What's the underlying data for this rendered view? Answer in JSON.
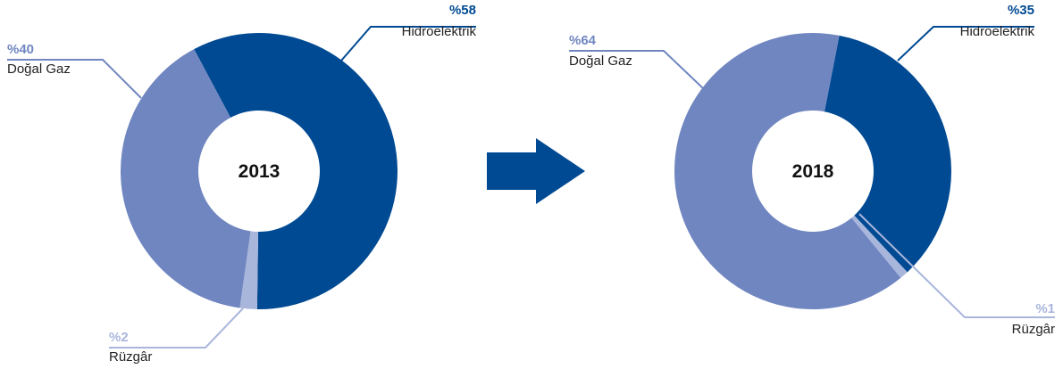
{
  "chart_data": [
    {
      "type": "pie",
      "title": "2013",
      "categories": [
        "Hidroelektrik",
        "Rüzgâr",
        "Doğal Gaz"
      ],
      "values": [
        58,
        2,
        40
      ],
      "value_labels": [
        "%58",
        "%2",
        "%40"
      ],
      "colors": [
        "#004a93",
        "#a9b6dc",
        "#7086c0"
      ]
    },
    {
      "type": "pie",
      "title": "2018",
      "categories": [
        "Hidroelektrik",
        "Rüzgâr",
        "Doğal Gaz"
      ],
      "values": [
        35,
        1,
        64
      ],
      "value_labels": [
        "%35",
        "%1",
        "%64"
      ],
      "colors": [
        "#004a93",
        "#a9b6dc",
        "#7086c0"
      ]
    }
  ]
}
